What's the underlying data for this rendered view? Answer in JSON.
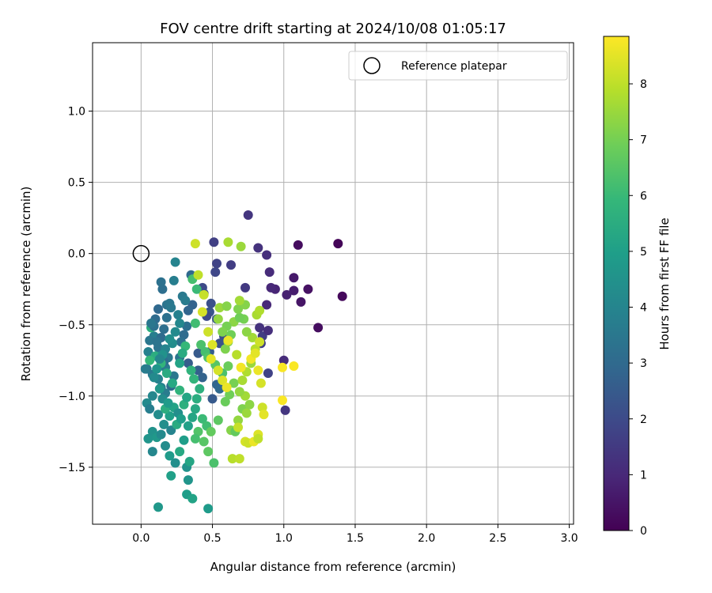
{
  "chart_data": {
    "type": "scatter",
    "title": "FOV centre drift starting at 2024/10/08 01:05:17",
    "xlabel": "Angular distance from reference (arcmin)",
    "ylabel": "Rotation from reference (arcmin)",
    "xlim": [
      -0.34,
      3.03
    ],
    "ylim": [
      -1.9,
      1.48
    ],
    "xticks": [
      0.0,
      0.5,
      1.0,
      1.5,
      2.0,
      2.5,
      3.0
    ],
    "xtick_labels": [
      "0.0",
      "0.5",
      "1.0",
      "1.5",
      "2.0",
      "2.5",
      "3.0"
    ],
    "yticks": [
      -1.5,
      -1.0,
      -0.5,
      0.0,
      0.5,
      1.0
    ],
    "ytick_labels": [
      "−1.5",
      "−1.0",
      "−0.5",
      "0.0",
      "0.5",
      "1.0"
    ],
    "grid": true,
    "legend": {
      "placement": "top-right",
      "entries": [
        "Reference platepar"
      ]
    },
    "reference_point": {
      "x": 0.0,
      "y": 0.0
    },
    "colorbar": {
      "label": "Hours from first FF file",
      "min": 0,
      "max": 8.85,
      "colormap": "viridis",
      "ticks": [
        0,
        1,
        2,
        3,
        4,
        5,
        6,
        7,
        8
      ],
      "tick_labels": [
        "0",
        "1",
        "2",
        "3",
        "4",
        "5",
        "6",
        "7",
        "8"
      ]
    },
    "points": [
      [
        1.38,
        0.07,
        0.1
      ],
      [
        1.41,
        -0.3,
        0.2
      ],
      [
        1.24,
        -0.52,
        0.3
      ],
      [
        1.1,
        0.06,
        0.3
      ],
      [
        1.17,
        -0.25,
        0.4
      ],
      [
        1.12,
        -0.34,
        0.5
      ],
      [
        1.07,
        -0.17,
        0.6
      ],
      [
        1.07,
        -0.26,
        0.7
      ],
      [
        1.02,
        -0.29,
        0.8
      ],
      [
        0.94,
        -0.25,
        0.9
      ],
      [
        0.91,
        -0.24,
        1.0
      ],
      [
        0.9,
        -0.13,
        1.1
      ],
      [
        0.88,
        -0.01,
        1.2
      ],
      [
        0.82,
        0.04,
        1.3
      ],
      [
        0.75,
        0.27,
        1.4
      ],
      [
        0.73,
        -0.24,
        1.5
      ],
      [
        0.88,
        -0.36,
        1.0
      ],
      [
        0.83,
        -0.52,
        1.3
      ],
      [
        0.85,
        -0.58,
        1.6
      ],
      [
        0.89,
        -0.54,
        1.2
      ],
      [
        0.89,
        -0.84,
        1.8
      ],
      [
        1.0,
        -0.75,
        1.1
      ],
      [
        1.01,
        -1.1,
        1.4
      ],
      [
        0.84,
        -0.63,
        1.7
      ],
      [
        0.63,
        -0.08,
        1.6
      ],
      [
        0.51,
        0.08,
        1.7
      ],
      [
        0.53,
        -0.07,
        1.8
      ],
      [
        0.52,
        -0.13,
        1.9
      ],
      [
        0.43,
        -0.24,
        2.0
      ],
      [
        0.44,
        -0.28,
        2.1
      ],
      [
        0.49,
        -0.35,
        2.2
      ],
      [
        0.48,
        -0.41,
        2.3
      ],
      [
        0.53,
        -0.46,
        2.4
      ],
      [
        0.46,
        -0.44,
        2.0
      ],
      [
        0.58,
        -0.58,
        2.1
      ],
      [
        0.55,
        -0.63,
        2.2
      ],
      [
        0.48,
        -0.69,
        2.6
      ],
      [
        0.4,
        -0.7,
        2.5
      ],
      [
        0.4,
        -0.82,
        2.7
      ],
      [
        0.33,
        -0.77,
        2.6
      ],
      [
        0.43,
        -0.87,
        2.8
      ],
      [
        0.53,
        -0.92,
        2.9
      ],
      [
        0.55,
        -0.95,
        3.0
      ],
      [
        0.5,
        -1.02,
        2.5
      ],
      [
        0.36,
        -0.36,
        2.8
      ],
      [
        0.35,
        -0.15,
        3.0
      ],
      [
        0.33,
        -0.4,
        2.9
      ],
      [
        0.32,
        -0.51,
        3.2
      ],
      [
        0.3,
        -0.57,
        3.1
      ],
      [
        0.28,
        -0.62,
        3.3
      ],
      [
        0.27,
        -0.73,
        3.4
      ],
      [
        0.23,
        -0.86,
        3.5
      ],
      [
        0.21,
        -0.93,
        3.1
      ],
      [
        0.19,
        -0.73,
        3.6
      ],
      [
        0.17,
        -0.8,
        3.7
      ],
      [
        0.16,
        -0.76,
        3.2
      ],
      [
        0.12,
        -0.66,
        3.4
      ],
      [
        0.09,
        -0.58,
        3.8
      ],
      [
        0.06,
        -0.61,
        3.5
      ],
      [
        0.05,
        -0.69,
        3.9
      ],
      [
        0.04,
        -0.81,
        3.3
      ],
      [
        0.08,
        -0.85,
        3.6
      ],
      [
        0.12,
        -0.88,
        3.9
      ],
      [
        0.14,
        -0.94,
        4.0
      ],
      [
        0.17,
        -0.98,
        3.7
      ],
      [
        0.08,
        -1.0,
        4.1
      ],
      [
        0.04,
        -1.05,
        4.2
      ],
      [
        0.06,
        -1.09,
        3.8
      ],
      [
        0.12,
        -1.13,
        4.3
      ],
      [
        0.16,
        -1.2,
        4.4
      ],
      [
        0.21,
        -1.24,
        4.0
      ],
      [
        0.08,
        -1.25,
        4.5
      ],
      [
        0.05,
        -1.3,
        4.6
      ],
      [
        0.08,
        -1.39,
        4.1
      ],
      [
        0.11,
        -1.29,
        4.7
      ],
      [
        0.14,
        -1.27,
        4.2
      ],
      [
        0.17,
        -1.35,
        4.3
      ],
      [
        0.2,
        -1.42,
        4.8
      ],
      [
        0.24,
        -1.47,
        4.4
      ],
      [
        0.32,
        -1.5,
        4.5
      ],
      [
        0.33,
        -1.59,
        4.6
      ],
      [
        0.32,
        -1.69,
        4.9
      ],
      [
        0.21,
        -1.56,
        5.0
      ],
      [
        0.12,
        -1.78,
        4.7
      ],
      [
        0.47,
        -1.79,
        4.8
      ],
      [
        0.36,
        -1.72,
        5.1
      ],
      [
        0.34,
        -1.46,
        5.2
      ],
      [
        0.27,
        -1.39,
        5.3
      ],
      [
        0.3,
        -1.31,
        4.9
      ],
      [
        0.25,
        -1.2,
        5.4
      ],
      [
        0.2,
        -1.14,
        5.0
      ],
      [
        0.17,
        -1.09,
        5.5
      ],
      [
        0.23,
        -1.08,
        5.1
      ],
      [
        0.3,
        -1.06,
        5.6
      ],
      [
        0.32,
        -1.01,
        5.2
      ],
      [
        0.27,
        -0.96,
        5.7
      ],
      [
        0.22,
        -0.91,
        5.3
      ],
      [
        0.18,
        -0.84,
        5.4
      ],
      [
        0.14,
        -0.77,
        5.8
      ],
      [
        0.1,
        -0.72,
        5.5
      ],
      [
        0.06,
        -0.75,
        5.9
      ],
      [
        0.07,
        -0.52,
        5.6
      ],
      [
        0.1,
        -0.46,
        3.1
      ],
      [
        0.12,
        -0.39,
        3.0
      ],
      [
        0.15,
        -0.25,
        3.2
      ],
      [
        0.14,
        -0.2,
        3.3
      ],
      [
        0.18,
        -0.36,
        3.4
      ],
      [
        0.2,
        -0.35,
        3.5
      ],
      [
        0.21,
        -0.38,
        3.6
      ],
      [
        0.18,
        -0.45,
        3.3
      ],
      [
        0.16,
        -0.53,
        3.2
      ],
      [
        0.14,
        -0.59,
        3.1
      ],
      [
        0.11,
        -0.62,
        3.4
      ],
      [
        0.09,
        -0.51,
        3.3
      ],
      [
        0.07,
        -0.49,
        3.5
      ],
      [
        0.03,
        -0.81,
        3.7
      ],
      [
        0.23,
        -0.19,
        3.8
      ],
      [
        0.24,
        -0.06,
        4.0
      ],
      [
        0.26,
        -0.43,
        3.9
      ],
      [
        0.27,
        -0.49,
        4.1
      ],
      [
        0.29,
        -0.3,
        3.6
      ],
      [
        0.31,
        -0.33,
        3.7
      ],
      [
        0.24,
        -0.55,
        4.2
      ],
      [
        0.22,
        -0.63,
        4.3
      ],
      [
        0.2,
        -0.6,
        4.4
      ],
      [
        0.17,
        -0.67,
        4.0
      ],
      [
        0.15,
        -0.71,
        4.5
      ],
      [
        0.13,
        -0.74,
        4.1
      ],
      [
        0.11,
        -0.81,
        4.6
      ],
      [
        0.09,
        -0.87,
        4.2
      ],
      [
        0.13,
        -0.95,
        4.7
      ],
      [
        0.15,
        -1.02,
        4.3
      ],
      [
        0.19,
        -1.05,
        4.8
      ],
      [
        0.26,
        -1.12,
        4.4
      ],
      [
        0.28,
        -1.16,
        4.9
      ],
      [
        0.33,
        -1.21,
        5.0
      ],
      [
        0.36,
        -1.15,
        5.2
      ],
      [
        0.38,
        -1.09,
        5.3
      ],
      [
        0.39,
        -1.02,
        5.5
      ],
      [
        0.41,
        -0.95,
        5.6
      ],
      [
        0.37,
        -0.88,
        5.8
      ],
      [
        0.35,
        -0.82,
        5.7
      ],
      [
        0.31,
        -0.65,
        5.9
      ],
      [
        0.29,
        -0.7,
        5.4
      ],
      [
        0.27,
        -0.77,
        5.1
      ],
      [
        0.39,
        -0.25,
        6.0
      ],
      [
        0.36,
        -0.18,
        6.2
      ],
      [
        0.38,
        -0.49,
        6.1
      ],
      [
        0.42,
        -0.64,
        6.3
      ],
      [
        0.45,
        -0.69,
        6.2
      ],
      [
        0.47,
        -0.73,
        6.4
      ],
      [
        0.52,
        -0.78,
        6.5
      ],
      [
        0.57,
        -0.84,
        6.3
      ],
      [
        0.43,
        -1.16,
        6.0
      ],
      [
        0.46,
        -1.21,
        6.1
      ],
      [
        0.4,
        -1.25,
        6.4
      ],
      [
        0.38,
        -1.3,
        6.2
      ],
      [
        0.44,
        -1.32,
        6.5
      ],
      [
        0.47,
        -1.39,
        6.6
      ],
      [
        0.51,
        -1.47,
        6.3
      ],
      [
        0.49,
        -1.25,
        6.7
      ],
      [
        0.54,
        -1.17,
        6.6
      ],
      [
        0.59,
        -1.04,
        6.8
      ],
      [
        0.62,
        -0.99,
        6.9
      ],
      [
        0.65,
        -0.91,
        7.0
      ],
      [
        0.61,
        -0.79,
        6.8
      ],
      [
        0.59,
        -0.67,
        7.1
      ],
      [
        0.61,
        -0.62,
        7.2
      ],
      [
        0.63,
        -0.57,
        6.9
      ],
      [
        0.65,
        -0.48,
        7.3
      ],
      [
        0.6,
        -0.51,
        7.0
      ],
      [
        0.57,
        -0.55,
        7.1
      ],
      [
        0.54,
        -0.46,
        7.4
      ],
      [
        0.55,
        -0.38,
        7.5
      ],
      [
        0.6,
        -0.37,
        7.2
      ],
      [
        0.63,
        -1.24,
        7.2
      ],
      [
        0.66,
        -1.25,
        6.7
      ],
      [
        0.68,
        -1.17,
        7.4
      ],
      [
        0.71,
        -1.09,
        7.1
      ],
      [
        0.74,
        -1.12,
        7.5
      ],
      [
        0.76,
        -1.06,
        7.3
      ],
      [
        0.73,
        -1.0,
        7.6
      ],
      [
        0.69,
        -0.97,
        7.4
      ],
      [
        0.71,
        -0.89,
        7.7
      ],
      [
        0.74,
        -0.83,
        7.8
      ],
      [
        0.77,
        -0.77,
        7.5
      ],
      [
        0.8,
        -0.67,
        7.9
      ],
      [
        0.78,
        -0.59,
        7.6
      ],
      [
        0.74,
        -0.55,
        7.3
      ],
      [
        0.72,
        -0.46,
        7.0
      ],
      [
        0.69,
        -0.45,
        6.9
      ],
      [
        0.68,
        -0.39,
        7.1
      ],
      [
        0.73,
        -0.36,
        7.2
      ],
      [
        0.81,
        -0.43,
        7.7
      ],
      [
        0.83,
        -0.4,
        7.8
      ],
      [
        0.69,
        -0.33,
        7.6
      ],
      [
        0.61,
        0.08,
        7.7
      ],
      [
        0.7,
        0.05,
        7.5
      ],
      [
        0.38,
        0.07,
        8.2
      ],
      [
        0.4,
        -0.15,
        8.0
      ],
      [
        0.44,
        -0.29,
        8.1
      ],
      [
        0.43,
        -0.41,
        8.3
      ],
      [
        0.47,
        -0.55,
        8.2
      ],
      [
        0.5,
        -0.64,
        8.4
      ],
      [
        0.49,
        -0.74,
        8.5
      ],
      [
        0.54,
        -0.82,
        8.3
      ],
      [
        0.57,
        -0.89,
        8.4
      ],
      [
        0.6,
        -0.94,
        8.6
      ],
      [
        0.68,
        -1.22,
        8.1
      ],
      [
        0.64,
        -1.44,
        7.9
      ],
      [
        0.69,
        -1.44,
        8.0
      ],
      [
        0.73,
        -1.32,
        8.3
      ],
      [
        0.75,
        -1.33,
        8.2
      ],
      [
        0.79,
        -1.32,
        8.6
      ],
      [
        0.82,
        -1.27,
        8.4
      ],
      [
        0.82,
        -1.3,
        8.0
      ],
      [
        0.85,
        -1.08,
        8.2
      ],
      [
        0.86,
        -1.13,
        8.5
      ],
      [
        0.84,
        -0.91,
        8.3
      ],
      [
        0.82,
        -0.82,
        8.6
      ],
      [
        0.77,
        -0.74,
        8.7
      ],
      [
        0.8,
        -0.7,
        8.5
      ],
      [
        0.83,
        -0.62,
        8.2
      ],
      [
        0.99,
        -0.8,
        8.8
      ],
      [
        1.07,
        -0.79,
        8.8
      ],
      [
        0.99,
        -1.03,
        8.8
      ],
      [
        0.7,
        -0.8,
        8.7
      ],
      [
        0.61,
        -0.61,
        8.6
      ],
      [
        0.67,
        -0.71,
        7.9
      ]
    ]
  }
}
